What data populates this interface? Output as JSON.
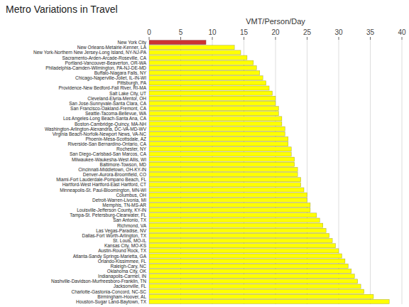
{
  "chart_data": {
    "type": "bar",
    "orientation": "horizontal",
    "title": "Metro Variations in Travel",
    "xlabel": "VMT/Person/Day",
    "categories": [
      "New York City",
      "New Orleans-Metairie-Kenner, LA",
      "New York-Northern New Jersey-Long Island, NY-NJ-PA",
      "Sacramento-Arden-Arcade-Roseville, CA",
      "Portland-Vancouver-Beaverton, OR-WA",
      "Philadelphia-Camden-Wilmington, PA-NJ-DE-MD",
      "Buffalo-Niagara Falls, NY",
      "Chicago-Naperville-Joliet, IL-IN-WI",
      "Pittsburgh, PA",
      "Providence-New Bedford-Fall River, RI-MA",
      "Salt Lake City, UT",
      "Cleveland-Elyria-Mentor, OH",
      "San Jose-Sunnyvale-Santa Clara, CA",
      "San Francisco-Oakland-Fremont, CA",
      "Seattle-Tacoma-Bellevue, WA",
      "Los Angeles-Long Beach-Santa Ana, CA",
      "Boston-Cambridge-Quincy, MA-NH",
      "Washington-Arlington-Alexandria, DC-VA-MD-WV",
      "Virginia Beach-Norfolk-Newport News, VA-NC",
      "Phoenix-Mesa-Scottsdale, AZ",
      "Riverside-San Bernardino-Ontario, CA",
      "Rochester, NY",
      "San Diego-Carlsbad-San Marcos, CA",
      "Milwaukee-Waukesha-West Allis, WI",
      "Baltimore-Towson, MD",
      "Cincinnati-Middletown, OH-KY-IN",
      "Denver-Aurora-Broomfield, CO",
      "Miami-Fort Lauderdale-Pompano Beach, FL",
      "Hartford-West Hartford-East Hartford, CT",
      "Minneapolis-St. Paul-Bloomington, MN-WI",
      "Columbus, OH",
      "Detroit-Warren-Livonia, MI",
      "Memphis, TN-MS-AR",
      "Louisville-Jefferson County, KY-IN",
      "Tampa-St. Petersburg-Clearwater, FL",
      "San Antonio, TX",
      "Richmond, VA",
      "Las Vegas-Paradise, NV",
      "Dallas-Fort Worth-Arlington, TX",
      "St. Louis, MO-IL",
      "Kansas City, MO-KS",
      "Austin-Round Rock, TX",
      "Atlanta-Sandy Springs-Marietta, GA",
      "Orlando-Kissimmee, FL",
      "Raleigh-Cary, NC",
      "Oklahoma City, OK",
      "Indianapolis-Carmel, IN",
      "Nashville-Davidson-Murfreesboro-Franklin, TN",
      "Jacksonville, FL",
      "Charlotte-Gastonia-Concord, NC-SC",
      "Birmingham-Hoover, AL",
      "Houston-Sugar Land-Baytown, TX"
    ],
    "values": [
      9.0,
      13.5,
      14.5,
      15.5,
      16.5,
      17.0,
      17.5,
      18.0,
      18.5,
      19.0,
      19.5,
      20.0,
      20.0,
      20.5,
      20.5,
      21.0,
      21.0,
      21.5,
      21.5,
      22.0,
      22.0,
      22.5,
      22.5,
      23.0,
      23.0,
      23.5,
      23.5,
      24.0,
      24.0,
      24.5,
      25.0,
      25.0,
      25.5,
      25.5,
      26.5,
      27.0,
      27.5,
      28.0,
      28.5,
      29.0,
      29.5,
      30.0,
      30.5,
      31.0,
      31.5,
      32.0,
      32.5,
      33.0,
      33.5,
      34.0,
      35.5,
      38.0
    ],
    "colors": [
      "#cc3333",
      "#ffff00",
      "#ffff00",
      "#ffff00",
      "#ffff00",
      "#ffff00",
      "#ffff00",
      "#ffff00",
      "#ffff00",
      "#ffff00",
      "#ffff00",
      "#ffff00",
      "#ffff00",
      "#ffff00",
      "#ffff00",
      "#ffff00",
      "#ffff00",
      "#ffff00",
      "#ffff00",
      "#ffff00",
      "#ffff00",
      "#ffff00",
      "#ffff00",
      "#ffff00",
      "#ffff00",
      "#ffff00",
      "#ffff00",
      "#ffff00",
      "#ffff00",
      "#ffff00",
      "#ffff00",
      "#ffff00",
      "#ffff00",
      "#ffff00",
      "#ffff00",
      "#ffff00",
      "#ffff00",
      "#ffff00",
      "#ffff00",
      "#ffff00",
      "#ffff00",
      "#ffff00",
      "#ffff00",
      "#ffff00",
      "#ffff00",
      "#ffff00",
      "#ffff00",
      "#ffff00",
      "#ffff00",
      "#ffff00",
      "#ffff00",
      "#ffff00"
    ],
    "xlim": [
      0,
      40
    ],
    "xticks": [
      0,
      5,
      10,
      15,
      20,
      25,
      30,
      35,
      40
    ],
    "grid": true
  }
}
